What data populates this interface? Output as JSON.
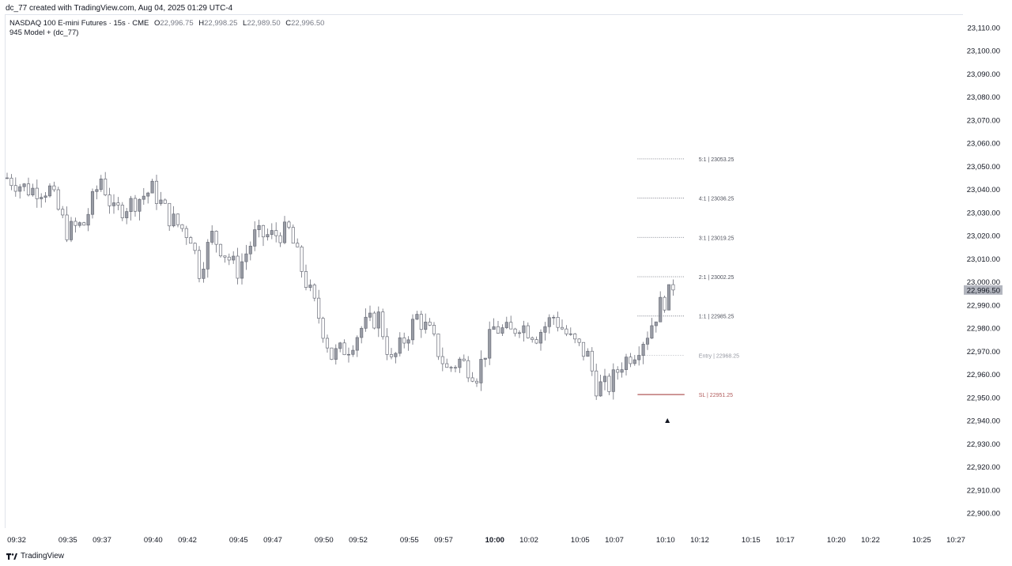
{
  "header": {
    "credit": "dc_77 created with TradingView.com, Aug 04, 2025 01:29 UTC-4"
  },
  "legend": {
    "symbol": "NASDAQ 100 E-mini Futures · 15s · CME",
    "open_label": "O",
    "open": "22,996.75",
    "high_label": "H",
    "high": "22,998.25",
    "low_label": "L",
    "low": "22,989.50",
    "close_label": "C",
    "close": "22,996.50",
    "indicator": "945 Model + (dc_77)"
  },
  "footer": {
    "brand": "TradingView",
    "logo_icon": "tradingview-logo-icon"
  },
  "colors": {
    "candle_stroke": "#6a6d78",
    "candle_body_down": "#ffffff",
    "candle_body_up": "#9a9da6",
    "level_line": "#787b86",
    "sl_line": "#b05a5a",
    "price_tag_bg": "#b2b5be"
  },
  "chart_data": {
    "type": "candlestick",
    "ylim": [
      22890,
      23115
    ],
    "y_ticks": [
      "23,110.00",
      "23,100.00",
      "23,090.00",
      "23,080.00",
      "23,070.00",
      "23,060.00",
      "23,050.00",
      "23,040.00",
      "23,030.00",
      "23,020.00",
      "23,010.00",
      "23,000.00",
      "22,990.00",
      "22,980.00",
      "22,970.00",
      "22,960.00",
      "22,950.00",
      "22,940.00",
      "22,930.00",
      "22,920.00",
      "22,910.00",
      "22,900.00"
    ],
    "x_ticks": [
      {
        "label": "09:32",
        "i": 0,
        "bold": false
      },
      {
        "label": "09:35",
        "i": 12,
        "bold": false
      },
      {
        "label": "09:37",
        "i": 20,
        "bold": false
      },
      {
        "label": "09:40",
        "i": 32,
        "bold": false
      },
      {
        "label": "09:42",
        "i": 40,
        "bold": false
      },
      {
        "label": "09:45",
        "i": 52,
        "bold": false
      },
      {
        "label": "09:47",
        "i": 60,
        "bold": false
      },
      {
        "label": "09:50",
        "i": 72,
        "bold": false
      },
      {
        "label": "09:52",
        "i": 80,
        "bold": false
      },
      {
        "label": "09:55",
        "i": 92,
        "bold": false
      },
      {
        "label": "09:57",
        "i": 100,
        "bold": false
      },
      {
        "label": "10:00",
        "i": 112,
        "bold": true
      },
      {
        "label": "10:02",
        "i": 120,
        "bold": false
      },
      {
        "label": "10:05",
        "i": 132,
        "bold": false
      },
      {
        "label": "10:07",
        "i": 140,
        "bold": false
      },
      {
        "label": "10:10",
        "i": 152,
        "bold": false
      },
      {
        "label": "10:12",
        "i": 160,
        "bold": false
      },
      {
        "label": "10:15",
        "i": 172,
        "bold": false
      },
      {
        "label": "10:17",
        "i": 180,
        "bold": false
      },
      {
        "label": "10:20",
        "i": 192,
        "bold": false
      },
      {
        "label": "10:22",
        "i": 200,
        "bold": false
      },
      {
        "label": "10:25",
        "i": 212,
        "bold": false
      },
      {
        "label": "10:27",
        "i": 220,
        "bold": false
      }
    ],
    "last_price": "22,996.50",
    "last_price_value": 22996.5,
    "levels": [
      {
        "label": "5:1 | 23053.25",
        "value": 23053.25,
        "kind": "target"
      },
      {
        "label": "4:1 | 23036.25",
        "value": 23036.25,
        "kind": "target"
      },
      {
        "label": "3:1 | 23019.25",
        "value": 23019.25,
        "kind": "target"
      },
      {
        "label": "2:1 | 23002.25",
        "value": 23002.25,
        "kind": "target"
      },
      {
        "label": "1:1 | 22985.25",
        "value": 22985.25,
        "kind": "target"
      },
      {
        "label": "Entry | 22968.25",
        "value": 22968.25,
        "kind": "entry"
      },
      {
        "label": "SL | 22951.25",
        "value": 22951.25,
        "kind": "sl"
      }
    ],
    "level_span": [
      146,
      157
    ],
    "signal": {
      "i": 153,
      "value": 22940,
      "icon": "triangle-up-icon"
    },
    "close_path": [
      [
        0,
        23045
      ],
      [
        5,
        23040
      ],
      [
        10,
        23040
      ],
      [
        14,
        23022
      ],
      [
        18,
        23025
      ],
      [
        22,
        23045
      ],
      [
        25,
        23030
      ],
      [
        30,
        23035
      ],
      [
        34,
        23040
      ],
      [
        38,
        23028
      ],
      [
        43,
        23020
      ],
      [
        45,
        23005
      ],
      [
        48,
        23020
      ],
      [
        50,
        23015
      ],
      [
        54,
        23005
      ],
      [
        58,
        23020
      ],
      [
        62,
        23020
      ],
      [
        66,
        23022
      ],
      [
        70,
        23000
      ],
      [
        73,
        22985
      ],
      [
        76,
        22968
      ],
      [
        80,
        22972
      ],
      [
        83,
        22980
      ],
      [
        87,
        22985
      ],
      [
        90,
        22965
      ],
      [
        93,
        22975
      ],
      [
        96,
        22985
      ],
      [
        99,
        22978
      ],
      [
        103,
        22962
      ],
      [
        106,
        22966
      ],
      [
        110,
        22960
      ],
      [
        114,
        22980
      ],
      [
        118,
        22978
      ],
      [
        120,
        22982
      ],
      [
        124,
        22977
      ],
      [
        128,
        22985
      ],
      [
        132,
        22975
      ],
      [
        136,
        22968
      ],
      [
        138,
        22955
      ],
      [
        141,
        22955
      ],
      [
        144,
        22965
      ],
      [
        147,
        22970
      ],
      [
        150,
        22978
      ],
      [
        153,
        22990
      ],
      [
        156,
        22996.5
      ]
    ],
    "n_bars": 157
  }
}
